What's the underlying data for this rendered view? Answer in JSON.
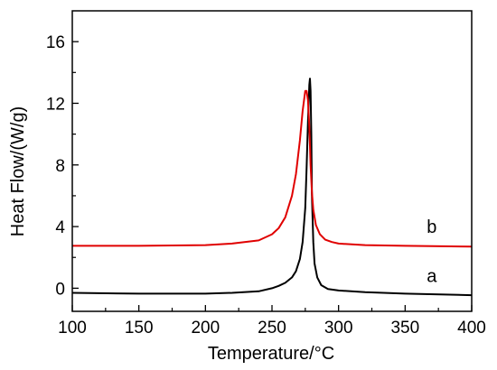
{
  "chart_data": {
    "type": "line",
    "title": "",
    "xlabel": "Temperature/°C",
    "ylabel": "Heat Flow/(W/g)",
    "xlim": [
      100,
      400
    ],
    "ylim": [
      -1.5,
      18
    ],
    "xticks": [
      100,
      150,
      200,
      250,
      300,
      350,
      400
    ],
    "yticks": [
      0,
      4,
      8,
      12,
      16
    ],
    "grid": false,
    "legend": "none",
    "series": [
      {
        "name": "a",
        "color": "#000000",
        "x": [
          100,
          150,
          200,
          220,
          240,
          250,
          255,
          260,
          265,
          268,
          271,
          273,
          275,
          276,
          277,
          278,
          278.5,
          279,
          279.5,
          280,
          281,
          282,
          284,
          287,
          292,
          300,
          320,
          350,
          400
        ],
        "y": [
          -0.3,
          -0.35,
          -0.35,
          -0.3,
          -0.2,
          0.0,
          0.15,
          0.35,
          0.7,
          1.1,
          1.9,
          3.0,
          5.2,
          7.8,
          10.8,
          13.2,
          13.6,
          12.8,
          10.0,
          6.0,
          3.0,
          1.6,
          0.7,
          0.2,
          -0.05,
          -0.15,
          -0.25,
          -0.35,
          -0.45
        ]
      },
      {
        "name": "b",
        "color": "#e00000",
        "x": [
          100,
          150,
          200,
          220,
          240,
          250,
          255,
          260,
          265,
          268,
          271,
          273,
          275,
          276,
          277,
          278,
          279,
          280,
          281,
          283,
          286,
          290,
          295,
          300,
          320,
          350,
          400
        ],
        "y": [
          2.75,
          2.75,
          2.8,
          2.9,
          3.1,
          3.5,
          3.9,
          4.6,
          6.0,
          7.4,
          9.6,
          11.5,
          12.8,
          12.8,
          12.2,
          10.5,
          8.0,
          6.2,
          5.1,
          4.1,
          3.5,
          3.15,
          3.0,
          2.9,
          2.8,
          2.75,
          2.7
        ]
      }
    ]
  }
}
